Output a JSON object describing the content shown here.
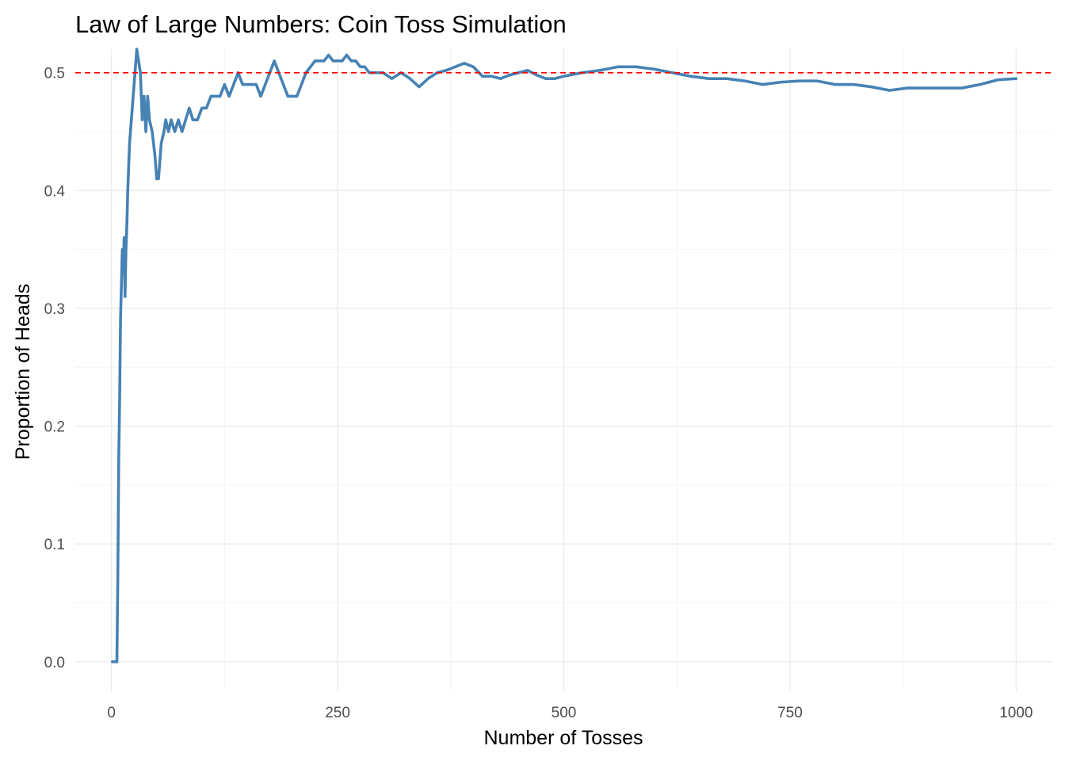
{
  "chart_data": {
    "type": "line",
    "title": "Law of Large Numbers: Coin Toss Simulation",
    "xlabel": "Number of Tosses",
    "ylabel": "Proportion of Heads",
    "xlim": [
      -40,
      1040
    ],
    "ylim": [
      -0.025,
      0.52
    ],
    "x_ticks": [
      0,
      250,
      500,
      750,
      1000
    ],
    "x_tick_labels": [
      "0",
      "250",
      "500",
      "750",
      "1000"
    ],
    "y_ticks": [
      0.0,
      0.1,
      0.2,
      0.3,
      0.4,
      0.5
    ],
    "y_tick_labels": [
      "0.0",
      "0.1",
      "0.2",
      "0.3",
      "0.4",
      "0.5"
    ],
    "grid": true,
    "reference_line": {
      "y": 0.5,
      "style": "dashed",
      "color": "#ff0000"
    },
    "series": [
      {
        "color": "#4682b4",
        "x": [
          1,
          3,
          4,
          5,
          6,
          7,
          8,
          9,
          10,
          11,
          12,
          13,
          14,
          15,
          16,
          17,
          18,
          19,
          20,
          22,
          24,
          26,
          28,
          30,
          32,
          34,
          36,
          38,
          40,
          42,
          45,
          48,
          50,
          52,
          55,
          58,
          60,
          63,
          66,
          70,
          74,
          78,
          82,
          86,
          90,
          95,
          100,
          105,
          110,
          115,
          120,
          125,
          130,
          135,
          140,
          145,
          150,
          155,
          160,
          165,
          170,
          175,
          180,
          185,
          190,
          195,
          200,
          205,
          210,
          215,
          220,
          225,
          230,
          235,
          240,
          245,
          250,
          255,
          260,
          265,
          270,
          275,
          280,
          285,
          290,
          295,
          300,
          310,
          320,
          330,
          340,
          350,
          360,
          370,
          380,
          390,
          400,
          410,
          420,
          430,
          440,
          450,
          460,
          470,
          480,
          490,
          500,
          520,
          540,
          560,
          580,
          600,
          620,
          640,
          660,
          680,
          700,
          720,
          740,
          760,
          780,
          800,
          820,
          840,
          860,
          880,
          900,
          920,
          940,
          960,
          980,
          1000
        ],
        "y": [
          0.0,
          0.0,
          0.0,
          0.0,
          0.0,
          0.07,
          0.17,
          0.22,
          0.29,
          0.32,
          0.35,
          0.33,
          0.36,
          0.31,
          0.35,
          0.37,
          0.4,
          0.42,
          0.44,
          0.46,
          0.48,
          0.5,
          0.52,
          0.51,
          0.5,
          0.46,
          0.48,
          0.45,
          0.48,
          0.46,
          0.45,
          0.43,
          0.41,
          0.41,
          0.44,
          0.45,
          0.46,
          0.45,
          0.46,
          0.45,
          0.46,
          0.45,
          0.46,
          0.47,
          0.46,
          0.46,
          0.47,
          0.47,
          0.48,
          0.48,
          0.48,
          0.49,
          0.48,
          0.49,
          0.5,
          0.49,
          0.49,
          0.49,
          0.49,
          0.48,
          0.49,
          0.5,
          0.51,
          0.5,
          0.49,
          0.48,
          0.48,
          0.48,
          0.49,
          0.5,
          0.505,
          0.51,
          0.51,
          0.51,
          0.515,
          0.51,
          0.51,
          0.51,
          0.515,
          0.51,
          0.51,
          0.505,
          0.505,
          0.5,
          0.5,
          0.5,
          0.5,
          0.495,
          0.5,
          0.495,
          0.488,
          0.495,
          0.5,
          0.502,
          0.505,
          0.508,
          0.505,
          0.497,
          0.497,
          0.495,
          0.498,
          0.5,
          0.502,
          0.498,
          0.495,
          0.495,
          0.497,
          0.5,
          0.502,
          0.505,
          0.505,
          0.503,
          0.5,
          0.497,
          0.495,
          0.495,
          0.493,
          0.49,
          0.492,
          0.493,
          0.493,
          0.49,
          0.49,
          0.488,
          0.485,
          0.487,
          0.487,
          0.487,
          0.487,
          0.49,
          0.494,
          0.495
        ]
      }
    ]
  }
}
